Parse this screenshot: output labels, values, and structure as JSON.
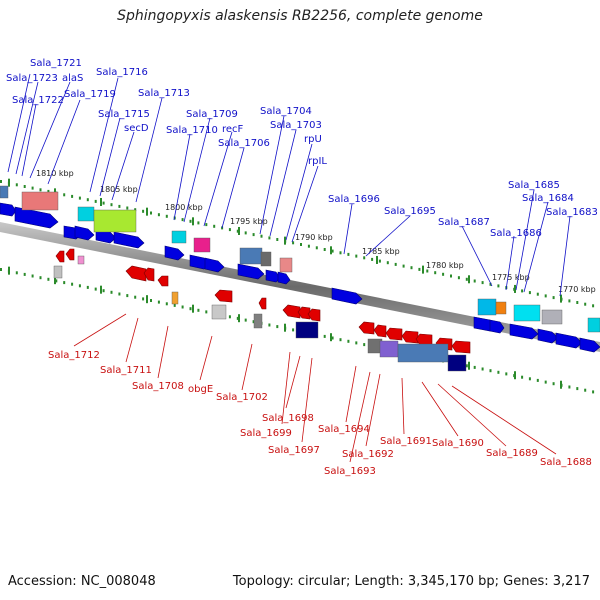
{
  "header": {
    "title": "Sphingopyxis alaskensis RB2256, complete genome"
  },
  "footer": {
    "accession": "Accession: NC_008048",
    "topology": "Topology: circular; Length: 3,345,170 bp; Genes: 3,217"
  },
  "ticks": [
    "1810 kbp",
    "1805 kbp",
    "1800 kbp",
    "1795 kbp",
    "1790 kbp",
    "1785 kbp",
    "1780 kbp",
    "1775 kbp",
    "1770 kbp"
  ],
  "genes_forward": [
    "Sala_1721",
    "Sala_1723",
    "alaS",
    "Sala_1722",
    "Sala_1716",
    "Sala_1719",
    "Sala_1715",
    "secD",
    "Sala_1713",
    "Sala_1709",
    "Sala_1710",
    "recF",
    "Sala_1706",
    "Sala_1704",
    "Sala_1703",
    "rpU",
    "rpIL",
    "Sala_1696",
    "Sala_1695",
    "Sala_1687",
    "Sala_1686",
    "Sala_1685",
    "Sala_1684",
    "Sala_1683"
  ],
  "genes_reverse": [
    "Sala_1712",
    "Sala_1711",
    "Sala_1708",
    "obgE",
    "Sala_1702",
    "Sala_1698",
    "Sala_1699",
    "Sala_1697",
    "Sala_1694",
    "Sala_1693",
    "Sala_1692",
    "Sala_1691",
    "Sala_1690",
    "Sala_1689",
    "Sala_1688"
  ],
  "colors": {
    "forward_label": "#1010c8",
    "reverse_label": "#c81010",
    "forward_arrow": "#0000e0",
    "reverse_arrow": "#e00000",
    "backbone": "#8a8a8a",
    "tick": "#2a8a2a"
  }
}
